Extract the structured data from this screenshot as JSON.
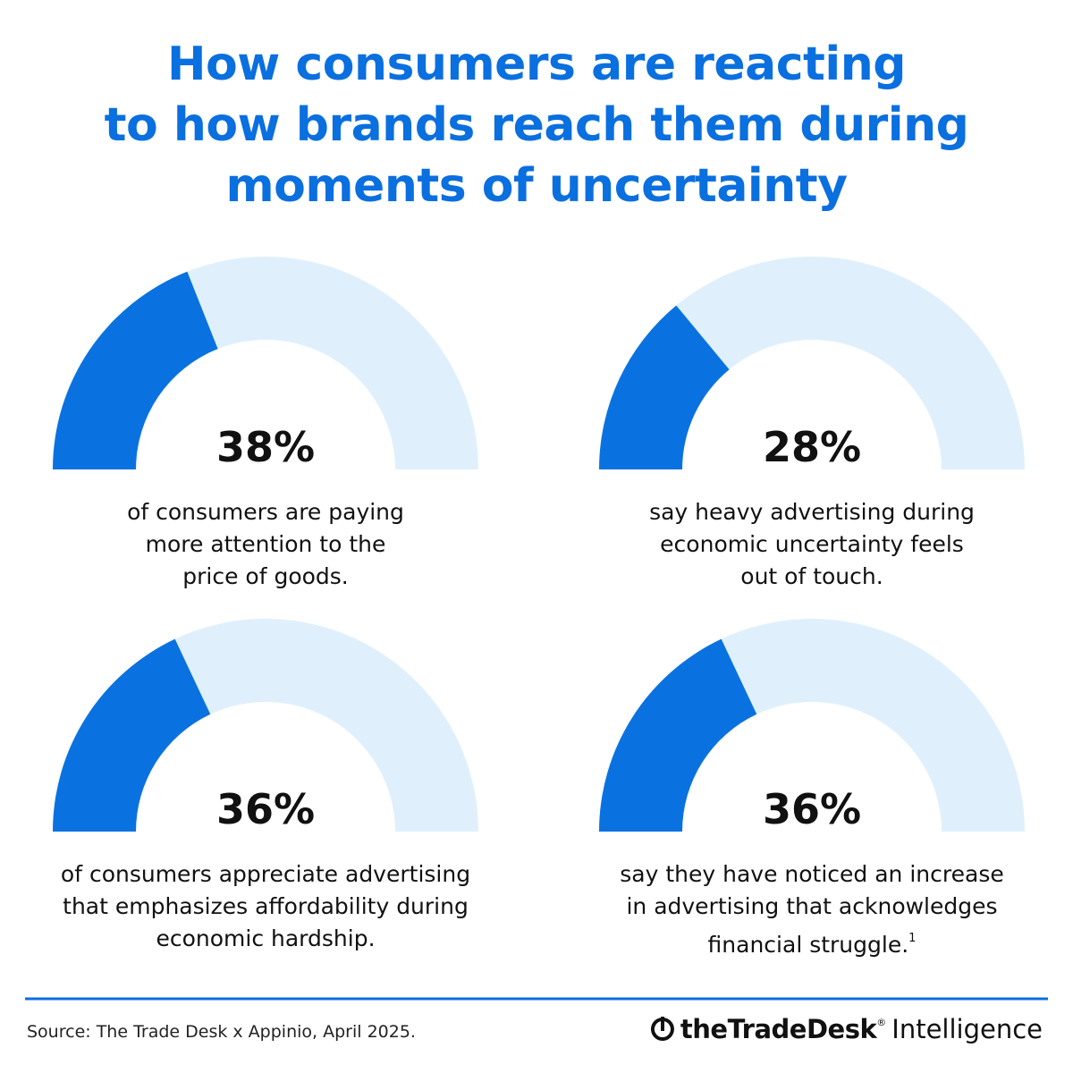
{
  "title": "How consumers are reacting\nto how brands reach them during\nmoments of uncertainty",
  "chart_data": [
    {
      "type": "gauge",
      "value": 38,
      "value_label": "38%",
      "description": "of consumers are paying\nmore attention to the\nprice of goods.",
      "ylim": [
        0,
        100
      ],
      "color": "#0a72e0",
      "track_color": "#dff0fc"
    },
    {
      "type": "gauge",
      "value": 28,
      "value_label": "28%",
      "description": "say heavy advertising during\neconomic uncertainty feels\nout of touch.",
      "ylim": [
        0,
        100
      ],
      "color": "#0a72e0",
      "track_color": "#dff0fc"
    },
    {
      "type": "gauge",
      "value": 36,
      "value_label": "36%",
      "description": "of consumers appreciate advertising\nthat emphasizes affordability during\neconomic hardship.",
      "ylim": [
        0,
        100
      ],
      "color": "#0a72e0",
      "track_color": "#dff0fc"
    },
    {
      "type": "gauge",
      "value": 36,
      "value_label": "36%",
      "description": "say they have noticed an increase\nin advertising that acknowledges\nfinancial struggle.",
      "footnote": "1",
      "ylim": [
        0,
        100
      ],
      "color": "#0a72e0",
      "track_color": "#dff0fc"
    }
  ],
  "source": "Source: The Trade Desk x Appinio,  April 2025.",
  "brand": {
    "name": "theTradeDesk",
    "mark": "®",
    "suffix": "Intelligence"
  }
}
